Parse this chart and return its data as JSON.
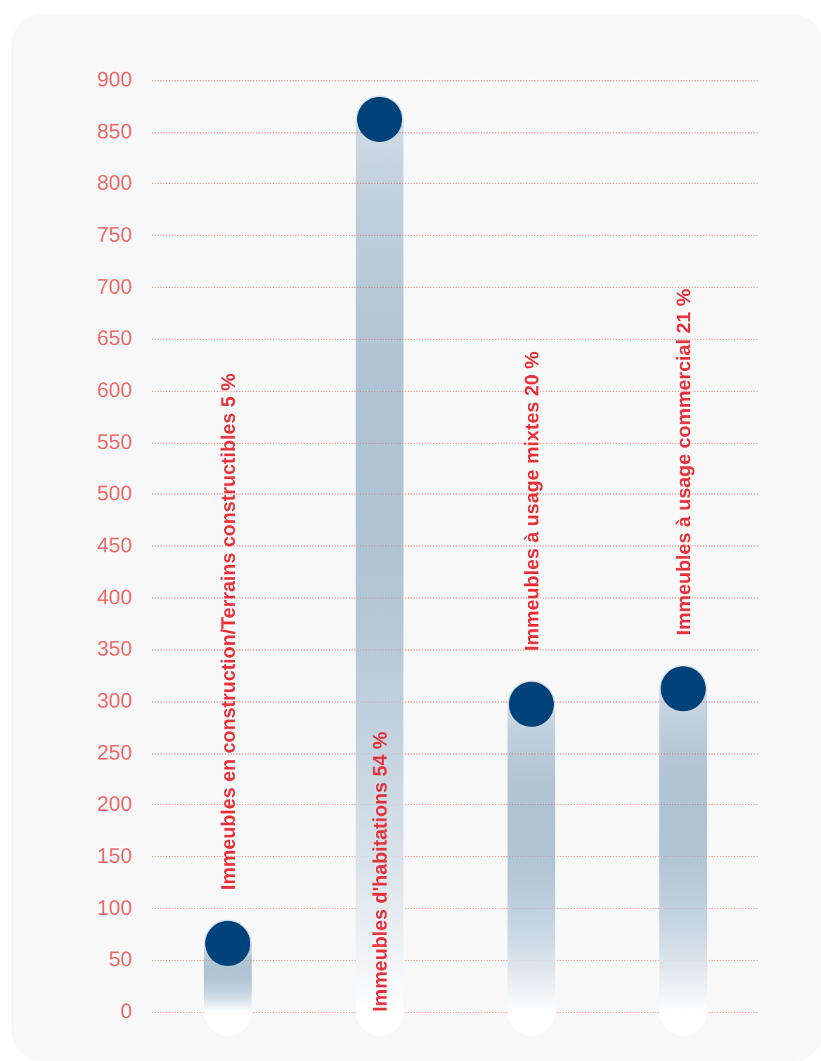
{
  "chart_data": {
    "type": "lollipop",
    "marker": "circle",
    "categories": [
      "Immeubles en construction/Terrains constructibles 5 %",
      "Immeubles d'habitations 54 %",
      "Immeubles à usage mixtes 20 %",
      "Immeubles à usage commercial 21 %"
    ],
    "values": [
      66,
      862,
      297,
      312
    ],
    "color": "#00427a",
    "ylim": [
      0,
      900
    ],
    "yticks": [
      0,
      50,
      100,
      150,
      200,
      250,
      300,
      350,
      400,
      450,
      500,
      550,
      600,
      650,
      700,
      750,
      800,
      850,
      900
    ],
    "grid": "y"
  }
}
